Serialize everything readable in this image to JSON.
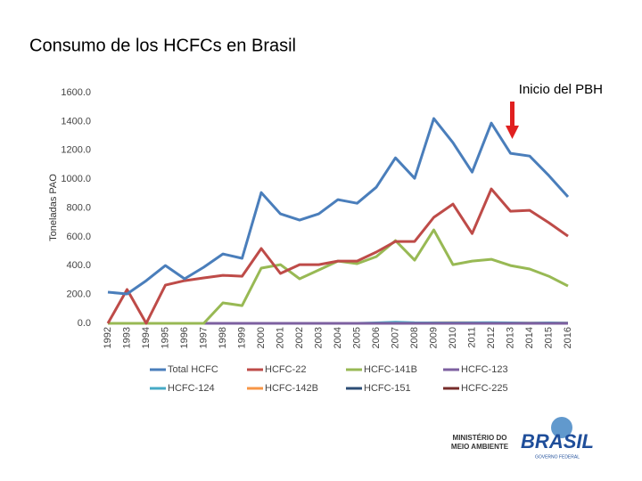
{
  "chart_data": {
    "type": "line",
    "title": "Consumo de los HCFCs en Brasil",
    "y_label": "Toneladas PAO",
    "annotation": "Inicio del PBH",
    "categories": [
      "1992",
      "1993",
      "1994",
      "1995",
      "1996",
      "1997",
      "1998",
      "1999",
      "2000",
      "2001",
      "2002",
      "2003",
      "2004",
      "2005",
      "2006",
      "2007",
      "2008",
      "2009",
      "2010",
      "2011",
      "2012",
      "2013",
      "2014",
      "2015",
      "2016"
    ],
    "ylim": [
      0,
      1600
    ],
    "yticks": [
      {
        "value": 0,
        "label": "0.0"
      },
      {
        "value": 200,
        "label": "200.0"
      },
      {
        "value": 400,
        "label": "400.0"
      },
      {
        "value": 600,
        "label": "600.0"
      },
      {
        "value": 800,
        "label": "800.0"
      },
      {
        "value": 1000,
        "label": "1000.0"
      },
      {
        "value": 1200,
        "label": "1200.0"
      },
      {
        "value": 1400,
        "label": "1400.0"
      },
      {
        "value": 1600,
        "label": "1600.0"
      }
    ],
    "grid": false,
    "series": [
      {
        "name": "Total HCFC",
        "color": "#4a7ebb",
        "values": [
          216,
          204,
          296,
          401,
          309,
          389,
          481,
          451,
          907,
          759,
          716,
          759,
          858,
          833,
          944,
          1148,
          1006,
          1420,
          1253,
          1049,
          1389,
          1179,
          1160,
          1025,
          877
        ]
      },
      {
        "name": "HCFC-22",
        "color": "#be4b48",
        "values": [
          0,
          235,
          0,
          265,
          296,
          315,
          333,
          327,
          519,
          346,
          407,
          407,
          432,
          432,
          494,
          568,
          568,
          735,
          827,
          623,
          932,
          778,
          784,
          698,
          605
        ]
      },
      {
        "name": "HCFC-141B",
        "color": "#98b954",
        "values": [
          0,
          0,
          0,
          0,
          0,
          0,
          142,
          123,
          383,
          407,
          309,
          370,
          432,
          414,
          463,
          574,
          438,
          648,
          407,
          432,
          444,
          401,
          377,
          327,
          259
        ]
      },
      {
        "name": "HCFC-123",
        "color": "#7d60a0",
        "values": [
          0,
          0,
          0,
          0,
          0,
          0,
          0,
          0,
          0,
          0,
          0,
          0,
          0,
          0,
          0,
          0,
          0,
          0,
          0,
          0,
          0,
          0,
          0,
          0,
          0
        ]
      },
      {
        "name": "HCFC-124",
        "color": "#46aac5",
        "values": [
          0,
          0,
          0,
          0,
          0,
          0,
          0,
          0,
          0,
          0,
          0,
          0,
          0,
          0,
          3,
          8,
          4,
          3,
          3,
          4,
          5,
          3,
          2,
          3,
          2
        ]
      },
      {
        "name": "HCFC-142B",
        "color": "#f79646",
        "values": [
          0,
          0,
          0,
          0,
          0,
          0,
          0,
          0,
          0,
          0,
          0,
          0,
          0,
          0,
          0,
          2,
          2,
          4,
          5,
          4,
          2,
          1,
          1,
          1,
          1
        ]
      },
      {
        "name": "HCFC-151",
        "color": "#2c4d75",
        "values": [
          0,
          0,
          0,
          0,
          0,
          0,
          0,
          0,
          0,
          0,
          0,
          0,
          0,
          0,
          0,
          0,
          0,
          0,
          0,
          0,
          0,
          0,
          0,
          0,
          0
        ]
      },
      {
        "name": "HCFC-225",
        "color": "#772c2a",
        "values": [
          0,
          0,
          0,
          0,
          0,
          0,
          0,
          0,
          0,
          0,
          0,
          0,
          0,
          0,
          0,
          0,
          0,
          0,
          0,
          0,
          0,
          0,
          0,
          0,
          0
        ]
      }
    ]
  },
  "footer": {
    "ministry_line1": "MINISTÉRIO DO",
    "ministry_line2": "MEIO AMBIENTE",
    "brand": "BRASIL",
    "brand_sub": "GOVERNO FEDERAL"
  }
}
